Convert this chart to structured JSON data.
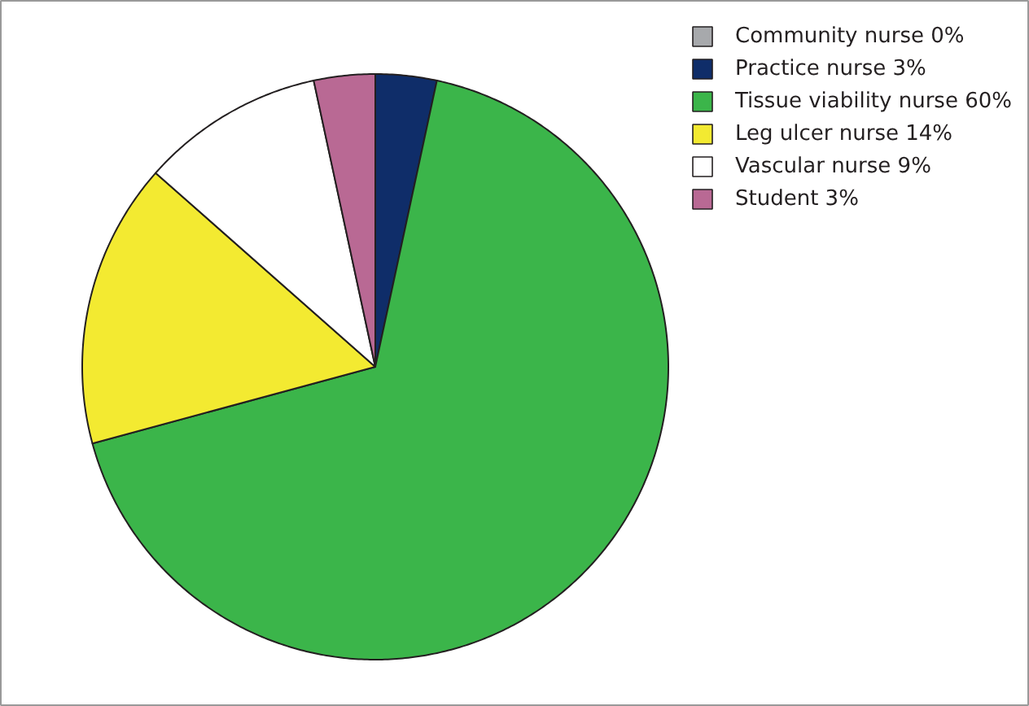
{
  "chart_data": {
    "type": "pie",
    "categories": [
      "Community nurse 0%",
      "Practice nurse 3%",
      "Tissue viability nurse 60%",
      "Leg ulcer nurse 14%",
      "Vascular nurse 9%",
      "Student 3%"
    ],
    "values": [
      0,
      3,
      60,
      14,
      9,
      3
    ],
    "colors": [
      "#a7a9ac",
      "#0f2d69",
      "#3bb54a",
      "#f3ea31",
      "#ffffff",
      "#b96994"
    ],
    "legend": "top right"
  }
}
